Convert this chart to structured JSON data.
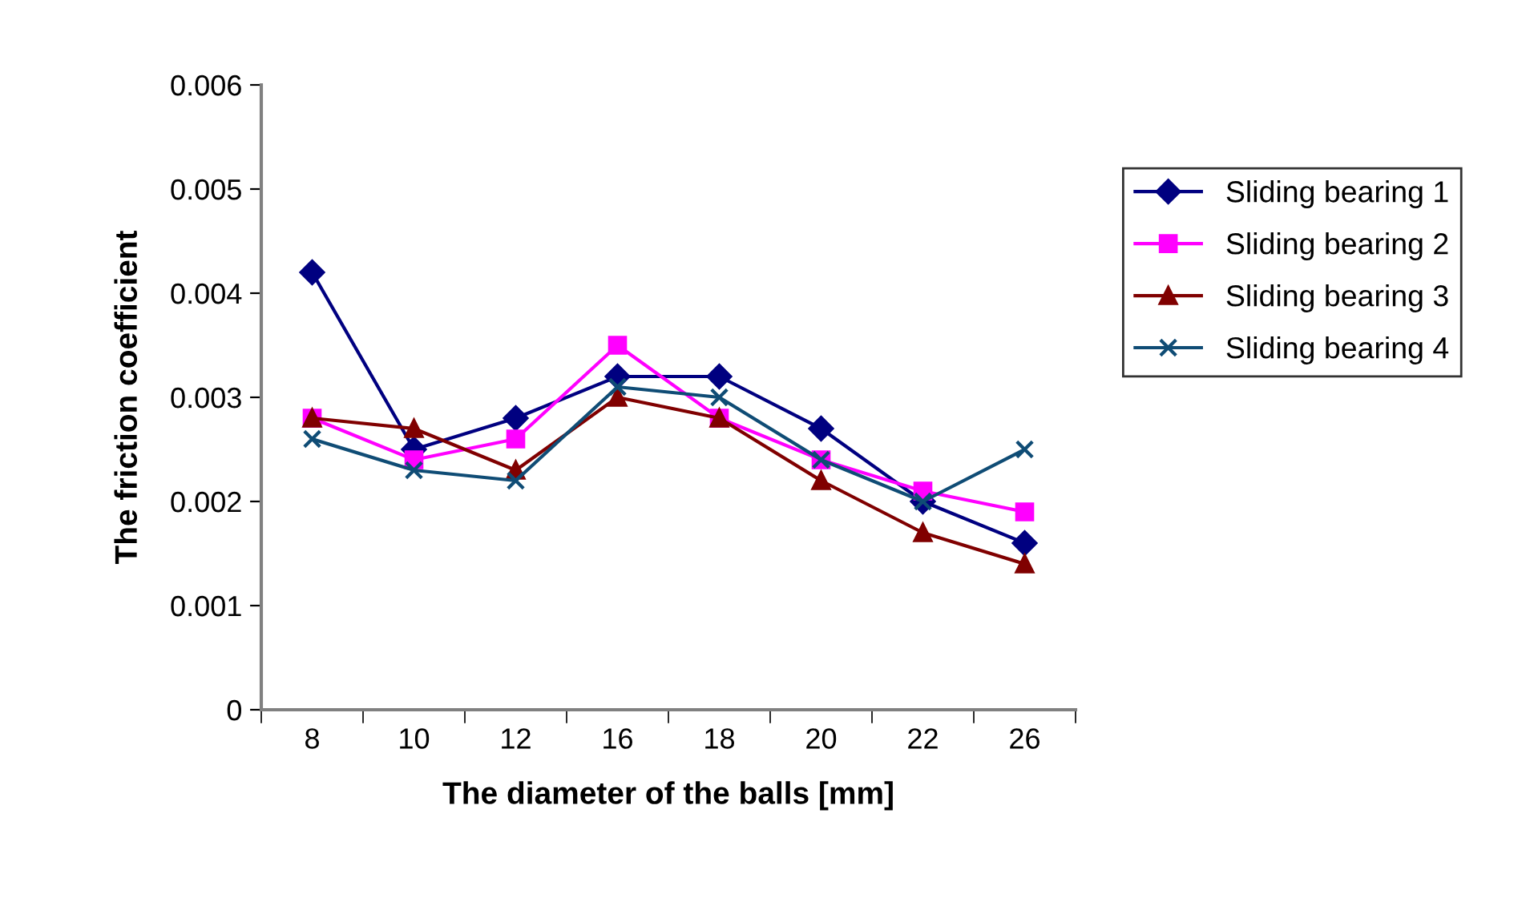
{
  "chart_data": {
    "type": "line",
    "xlabel": "The diameter of the balls [mm]",
    "ylabel": "The friction coefficient",
    "categories": [
      "8",
      "10",
      "12",
      "16",
      "18",
      "20",
      "22",
      "26"
    ],
    "ylim": [
      0,
      0.006
    ],
    "yticks": [
      0,
      0.001,
      0.002,
      0.003,
      0.004,
      0.005,
      0.006
    ],
    "grid": false,
    "legend": "right",
    "series": [
      {
        "name": "Sliding bearing 1",
        "color": "#000080",
        "marker": "diamond",
        "values": [
          0.0042,
          0.0025,
          0.0028,
          0.0032,
          0.0032,
          0.0027,
          0.002,
          0.0016
        ]
      },
      {
        "name": "Sliding bearing 2",
        "color": "#ff00ff",
        "marker": "square",
        "values": [
          0.0028,
          0.0024,
          0.0026,
          0.0035,
          0.0028,
          0.0024,
          0.0021,
          0.0019
        ]
      },
      {
        "name": "Sliding bearing 3",
        "color": "#800000",
        "marker": "triangle",
        "values": [
          0.0028,
          0.0027,
          0.0023,
          0.003,
          0.0028,
          0.0022,
          0.0017,
          0.0014
        ]
      },
      {
        "name": "Sliding bearing 4",
        "color": "#0f4c75",
        "marker": "cross",
        "values": [
          0.0026,
          0.0023,
          0.0022,
          0.0031,
          0.003,
          0.0024,
          0.002,
          0.0025
        ]
      }
    ]
  }
}
